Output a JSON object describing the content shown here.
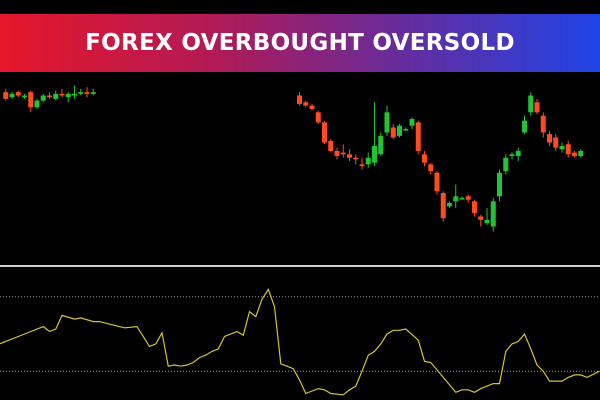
{
  "banner": {
    "title": "FOREX OVERBOUGHT OVERSOLD"
  },
  "colors": {
    "background": "#000000",
    "bull": "#22c435",
    "bear": "#ff4c1f",
    "oscillator": "#d6c433",
    "divider": "#cfcfcf",
    "level": "#9a9a9a",
    "banner_start": "#e6172a",
    "banner_end": "#1f43e6"
  },
  "chart_data": [
    {
      "type": "candlestick",
      "title": "",
      "grid": false,
      "price_axis_shown": false,
      "ylim": [
        0,
        100
      ],
      "candles": [
        {
          "i": 1,
          "o": 88,
          "c": 84,
          "h": 90,
          "l": 83
        },
        {
          "i": 2,
          "o": 85,
          "c": 87,
          "h": 88,
          "l": 84
        },
        {
          "i": 3,
          "o": 88,
          "c": 86,
          "h": 89,
          "l": 85
        },
        {
          "i": 4,
          "o": 85,
          "c": 86,
          "h": 87,
          "l": 84
        },
        {
          "i": 5,
          "o": 88,
          "c": 79,
          "h": 89,
          "l": 76
        },
        {
          "i": 6,
          "o": 79,
          "c": 83,
          "h": 84,
          "l": 78
        },
        {
          "i": 7,
          "o": 83,
          "c": 86,
          "h": 87,
          "l": 82
        },
        {
          "i": 8,
          "o": 86,
          "c": 85,
          "h": 88,
          "l": 84
        },
        {
          "i": 9,
          "o": 84,
          "c": 87,
          "h": 89,
          "l": 83
        },
        {
          "i": 10,
          "o": 87,
          "c": 86,
          "h": 90,
          "l": 85
        },
        {
          "i": 11,
          "o": 85,
          "c": 87,
          "h": 88,
          "l": 82
        },
        {
          "i": 12,
          "o": 86,
          "c": 87,
          "h": 92,
          "l": 84
        },
        {
          "i": 13,
          "o": 87,
          "c": 88,
          "h": 90,
          "l": 86
        },
        {
          "i": 14,
          "o": 88,
          "c": 87,
          "h": 91,
          "l": 85
        },
        {
          "i": 15,
          "o": 87,
          "c": 88,
          "h": 90,
          "l": 86
        },
        {
          "i": 48,
          "o": 86,
          "c": 81,
          "h": 88,
          "l": 80
        },
        {
          "i": 49,
          "o": 82,
          "c": 80,
          "h": 83,
          "l": 79
        },
        {
          "i": 50,
          "o": 80,
          "c": 78,
          "h": 81,
          "l": 77
        },
        {
          "i": 51,
          "o": 76,
          "c": 70,
          "h": 77,
          "l": 69
        },
        {
          "i": 52,
          "o": 70,
          "c": 58,
          "h": 71,
          "l": 57
        },
        {
          "i": 53,
          "o": 59,
          "c": 53,
          "h": 60,
          "l": 52
        },
        {
          "i": 54,
          "o": 53,
          "c": 50,
          "h": 55,
          "l": 48
        },
        {
          "i": 55,
          "o": 52,
          "c": 51,
          "h": 57,
          "l": 49
        },
        {
          "i": 56,
          "o": 51,
          "c": 49,
          "h": 54,
          "l": 47
        },
        {
          "i": 57,
          "o": 49,
          "c": 48,
          "h": 51,
          "l": 45
        },
        {
          "i": 58,
          "o": 45,
          "c": 44,
          "h": 49,
          "l": 42
        },
        {
          "i": 59,
          "o": 45,
          "c": 49,
          "h": 52,
          "l": 43
        },
        {
          "i": 60,
          "o": 46,
          "c": 56,
          "h": 82,
          "l": 44
        },
        {
          "i": 61,
          "o": 51,
          "c": 62,
          "h": 64,
          "l": 50
        },
        {
          "i": 62,
          "o": 64,
          "c": 76,
          "h": 80,
          "l": 62
        },
        {
          "i": 63,
          "o": 67,
          "c": 61,
          "h": 69,
          "l": 60
        },
        {
          "i": 64,
          "o": 62,
          "c": 68,
          "h": 69,
          "l": 61
        },
        {
          "i": 65,
          "o": 66,
          "c": 66,
          "h": 67,
          "l": 65
        },
        {
          "i": 66,
          "o": 68,
          "c": 72,
          "h": 73,
          "l": 66
        },
        {
          "i": 67,
          "o": 70,
          "c": 53,
          "h": 71,
          "l": 51
        },
        {
          "i": 68,
          "o": 51,
          "c": 46,
          "h": 53,
          "l": 44
        },
        {
          "i": 69,
          "o": 45,
          "c": 41,
          "h": 46,
          "l": 39
        },
        {
          "i": 70,
          "o": 40,
          "c": 29,
          "h": 41,
          "l": 27
        },
        {
          "i": 71,
          "o": 28,
          "c": 13,
          "h": 29,
          "l": 11
        },
        {
          "i": 72,
          "o": 20,
          "c": 22,
          "h": 23,
          "l": 19
        },
        {
          "i": 73,
          "o": 23,
          "c": 26,
          "h": 33,
          "l": 19
        },
        {
          "i": 74,
          "o": 25,
          "c": 25,
          "h": 26,
          "l": 24
        },
        {
          "i": 75,
          "o": 26,
          "c": 24,
          "h": 27,
          "l": 22
        },
        {
          "i": 76,
          "o": 23,
          "c": 16,
          "h": 24,
          "l": 14
        },
        {
          "i": 77,
          "o": 14,
          "c": 12,
          "h": 15,
          "l": 8
        },
        {
          "i": 78,
          "o": 10,
          "c": 12,
          "h": 19,
          "l": 9
        },
        {
          "i": 79,
          "o": 8,
          "c": 23,
          "h": 25,
          "l": 5
        },
        {
          "i": 80,
          "o": 26,
          "c": 40,
          "h": 42,
          "l": 23
        },
        {
          "i": 81,
          "o": 41,
          "c": 49,
          "h": 51,
          "l": 39
        },
        {
          "i": 82,
          "o": 50,
          "c": 51,
          "h": 52,
          "l": 48
        },
        {
          "i": 83,
          "o": 50,
          "c": 53,
          "h": 55,
          "l": 47
        },
        {
          "i": 84,
          "o": 64,
          "c": 71,
          "h": 74,
          "l": 63
        },
        {
          "i": 85,
          "o": 76,
          "c": 86,
          "h": 88,
          "l": 74
        },
        {
          "i": 86,
          "o": 82,
          "c": 76,
          "h": 84,
          "l": 75
        },
        {
          "i": 87,
          "o": 74,
          "c": 64,
          "h": 76,
          "l": 61
        },
        {
          "i": 88,
          "o": 63,
          "c": 58,
          "h": 65,
          "l": 56
        },
        {
          "i": 89,
          "o": 61,
          "c": 55,
          "h": 63,
          "l": 53
        },
        {
          "i": 90,
          "o": 54,
          "c": 56,
          "h": 58,
          "l": 52
        },
        {
          "i": 91,
          "o": 57,
          "c": 51,
          "h": 59,
          "l": 49
        },
        {
          "i": 92,
          "o": 52,
          "c": 50,
          "h": 53,
          "l": 49
        },
        {
          "i": 93,
          "o": 50,
          "c": 53,
          "h": 54,
          "l": 49
        }
      ]
    },
    {
      "type": "line",
      "title": "",
      "grid": false,
      "ylim": [
        0,
        100
      ],
      "levels": [
        80,
        20
      ],
      "series": [
        {
          "name": "",
          "x": [
            0,
            3,
            5,
            7,
            8,
            9,
            10,
            12,
            13,
            15,
            16,
            20,
            22,
            24,
            25,
            26,
            27,
            28,
            29,
            30,
            31,
            32,
            33,
            34,
            35,
            36,
            38,
            39,
            40,
            41,
            42,
            43,
            44,
            45,
            46,
            47,
            48,
            49,
            50,
            51,
            52,
            53,
            55,
            56,
            57,
            58,
            59,
            60,
            61,
            62,
            63,
            64,
            65,
            67,
            68,
            69,
            71,
            73,
            74,
            75,
            76,
            77,
            79,
            80,
            81,
            82,
            83,
            84,
            85,
            86,
            87,
            88,
            89,
            90,
            91,
            92,
            93,
            94,
            96
          ],
          "y": [
            42,
            48,
            52,
            56,
            52,
            54,
            65,
            62,
            63,
            60,
            60,
            55,
            56,
            40,
            42,
            51,
            24,
            25,
            24,
            25,
            27,
            31,
            33,
            36,
            38,
            48,
            52,
            49,
            68,
            64,
            78,
            86,
            72,
            26,
            24,
            22,
            13,
            2,
            4,
            6,
            5,
            2,
            1,
            5,
            8,
            20,
            33,
            36,
            42,
            50,
            53,
            53,
            54,
            45,
            28,
            27,
            15,
            3,
            5,
            5,
            3,
            6,
            10,
            10,
            36,
            42,
            44,
            50,
            38,
            25,
            20,
            12,
            12,
            12,
            15,
            17,
            17,
            15,
            20
          ]
        }
      ]
    }
  ]
}
